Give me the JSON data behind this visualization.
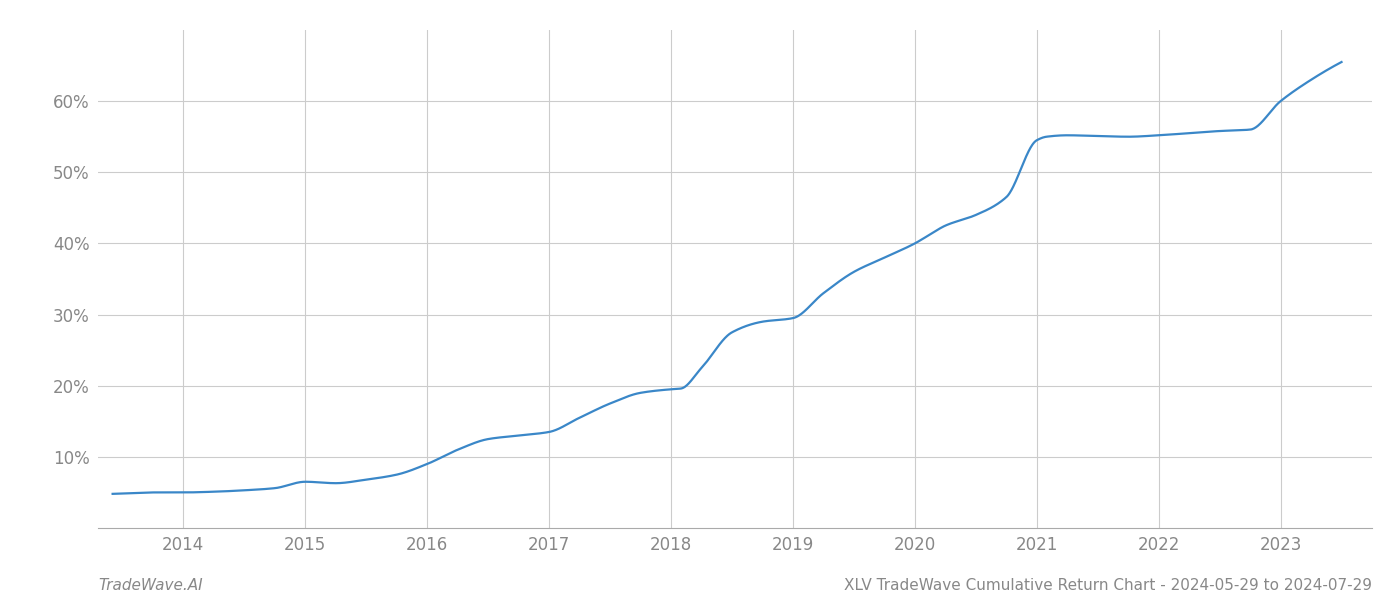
{
  "title": "XLV TradeWave Cumulative Return Chart - 2024-05-29 to 2024-07-29",
  "watermark": "TradeWave.AI",
  "line_color": "#3a87c8",
  "background_color": "#ffffff",
  "grid_color": "#cccccc",
  "tick_color": "#888888",
  "x_years": [
    2014,
    2015,
    2016,
    2017,
    2018,
    2019,
    2020,
    2021,
    2022,
    2023
  ],
  "key_x": [
    2013.42,
    2013.58,
    2013.75,
    2014.0,
    2014.25,
    2014.5,
    2014.75,
    2015.0,
    2015.25,
    2015.5,
    2015.75,
    2016.0,
    2016.25,
    2016.5,
    2016.75,
    2017.0,
    2017.25,
    2017.5,
    2017.75,
    2018.0,
    2018.08,
    2018.25,
    2018.5,
    2018.75,
    2019.0,
    2019.25,
    2019.5,
    2019.75,
    2020.0,
    2020.1,
    2020.25,
    2020.5,
    2020.75,
    2021.0,
    2021.08,
    2021.25,
    2021.5,
    2021.75,
    2022.0,
    2022.25,
    2022.5,
    2022.75,
    2023.0,
    2023.25,
    2023.5
  ],
  "key_y": [
    4.8,
    4.9,
    5.0,
    5.0,
    5.1,
    5.3,
    5.6,
    6.5,
    6.3,
    6.8,
    7.5,
    9.0,
    11.0,
    12.5,
    13.0,
    13.5,
    15.5,
    17.5,
    19.0,
    19.5,
    19.6,
    22.5,
    27.5,
    29.0,
    29.5,
    33.0,
    36.0,
    38.0,
    40.0,
    41.0,
    42.5,
    44.0,
    46.5,
    54.5,
    55.0,
    55.2,
    55.1,
    55.0,
    55.2,
    55.5,
    55.8,
    56.0,
    60.0,
    63.0,
    65.5
  ],
  "ylim": [
    0,
    70
  ],
  "yticks": [
    10,
    20,
    30,
    40,
    50,
    60
  ],
  "xlim": [
    2013.3,
    2023.75
  ],
  "title_fontsize": 11,
  "watermark_fontsize": 11,
  "tick_fontsize": 12,
  "line_width": 1.6
}
